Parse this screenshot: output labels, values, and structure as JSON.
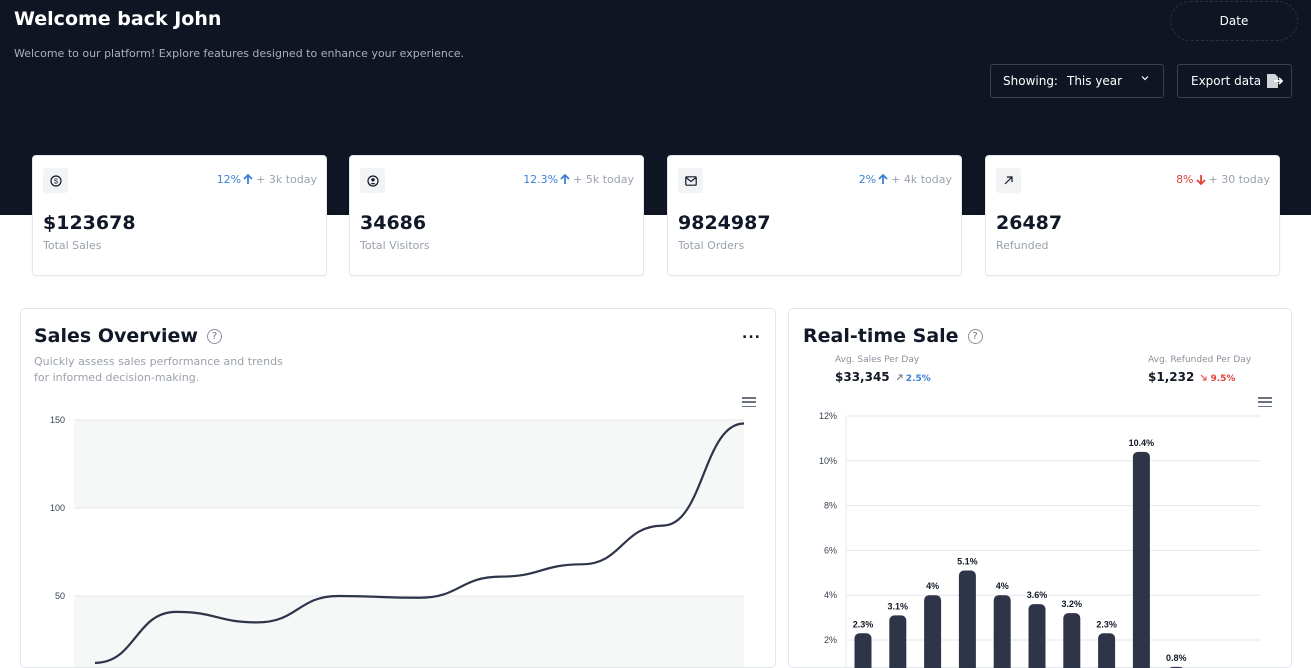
{
  "header": {
    "title": "Welcome back John",
    "subtitle": "Welcome to our platform! Explore features designed to enhance your experience.",
    "date_label": "Date",
    "showing_label": "Showing:",
    "showing_value": "This year",
    "export_label": "Export data"
  },
  "stats": [
    {
      "icon": "dollar-icon",
      "change": "12%",
      "direction": "up",
      "today": "+ 3k today",
      "value": "$123678",
      "label": "Total Sales"
    },
    {
      "icon": "user-icon",
      "change": "12.3%",
      "direction": "up",
      "today": "+ 5k today",
      "value": "34686",
      "label": "Total Visitors"
    },
    {
      "icon": "mail-icon",
      "change": "2%",
      "direction": "up",
      "today": "+ 4k today",
      "value": "9824987",
      "label": "Total Orders"
    },
    {
      "icon": "trend-arrow-icon",
      "change": "8%",
      "direction": "down",
      "today": "+ 30 today",
      "value": "26487",
      "label": "Refunded"
    }
  ],
  "sales_overview": {
    "title": "Sales Overview",
    "description": "Quickly assess sales performance and trends for informed decision-making.",
    "more": "..."
  },
  "realtime": {
    "title": "Real-time Sale",
    "avg_sales_label": "Avg. Sales Per Day",
    "avg_sales_value": "$33,345",
    "avg_sales_change": "2.5%",
    "avg_refund_label": "Avg. Refunded Per Day",
    "avg_refund_value": "$1,232",
    "avg_refund_change": "9.5%"
  },
  "colors": {
    "up": "#3b82d6",
    "down": "#e0433a",
    "line": "#2e3548",
    "bar": "#2e3548"
  },
  "chart_data": [
    {
      "type": "line",
      "y_ticks": [
        "150",
        "100",
        "50"
      ],
      "ylim": [
        0,
        150
      ],
      "x": [
        0,
        1,
        2,
        3,
        4,
        5,
        6,
        7,
        8
      ],
      "values": [
        12,
        41,
        35,
        50,
        49,
        61,
        68,
        90,
        148
      ],
      "grid": true
    },
    {
      "type": "bar",
      "y_ticks": [
        "12%",
        "10%",
        "8%",
        "6%",
        "4%",
        "2%"
      ],
      "ylim": [
        0,
        12
      ],
      "values": [
        2.3,
        3.1,
        4,
        5.1,
        4,
        3.6,
        3.2,
        2.3,
        10.4,
        0.8
      ],
      "labels": [
        "2.3%",
        "3.1%",
        "4%",
        "5.1%",
        "4%",
        "3.6%",
        "3.2%",
        "2.3%",
        "10.4%",
        "0.8%"
      ],
      "grid": true
    }
  ]
}
